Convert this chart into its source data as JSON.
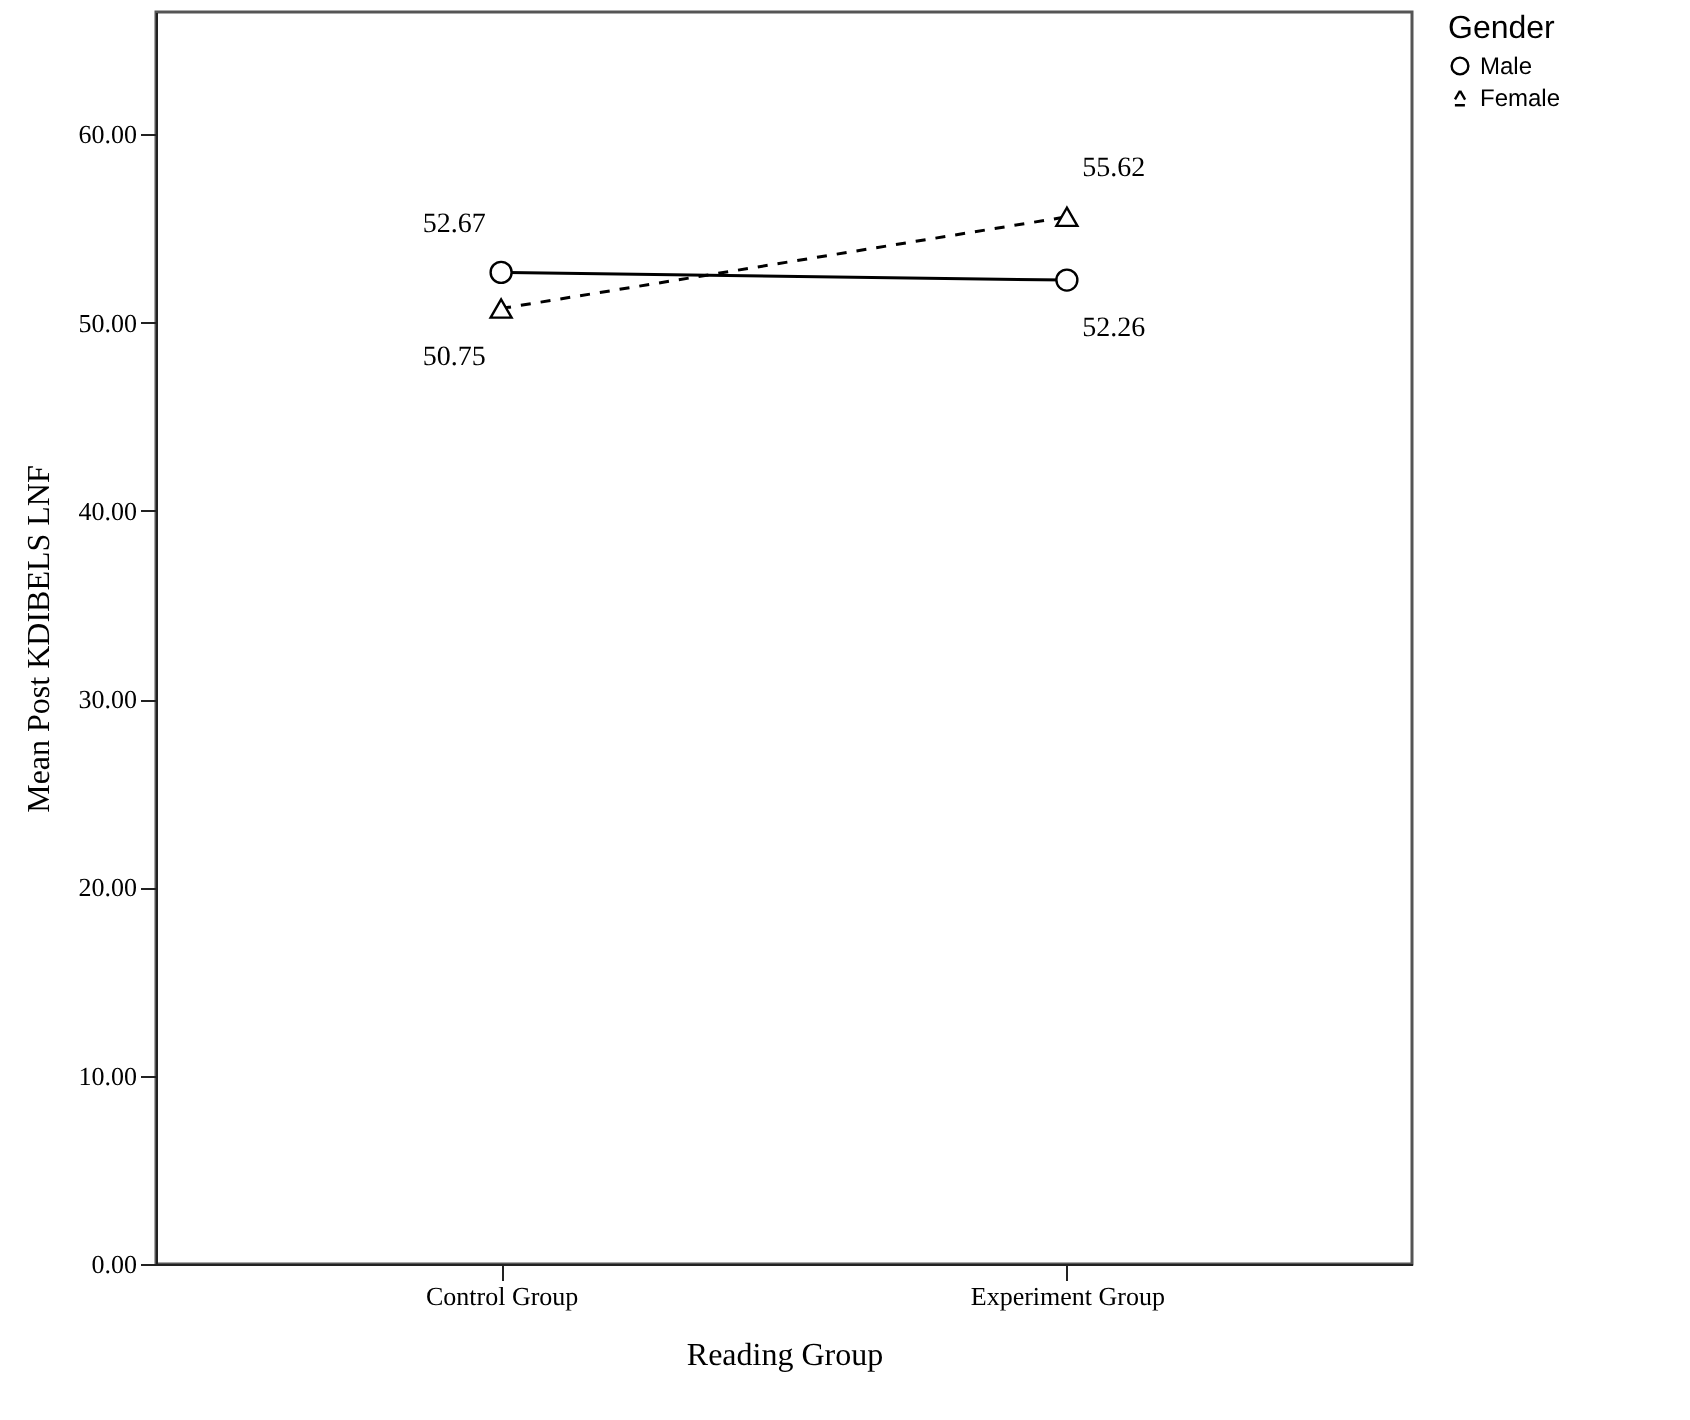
{
  "chart_data": {
    "type": "line",
    "xlabel": "Reading Group",
    "ylabel": "Mean Post KDIBELS LNF",
    "legend_title": "Gender",
    "categories": [
      "Control Group",
      "Experiment Group"
    ],
    "series": [
      {
        "name": "Male",
        "color": "#000000",
        "values": [
          52.67,
          52.26
        ],
        "marker": "circle",
        "line_style": "solid"
      },
      {
        "name": "Female",
        "color": "#000000",
        "values": [
          50.75,
          55.62
        ],
        "marker": "triangle",
        "line_style": "dashed"
      }
    ],
    "ylim": [
      0,
      66.5
    ],
    "yticks": [
      {
        "value": 0,
        "label": "0.00"
      },
      {
        "value": 10,
        "label": "10.00"
      },
      {
        "value": 20,
        "label": "20.00"
      },
      {
        "value": 30,
        "label": "30.00"
      },
      {
        "value": 40,
        "label": "40.00"
      },
      {
        "value": 50,
        "label": "50.00"
      },
      {
        "value": 60,
        "label": "60.00"
      }
    ],
    "data_labels": true,
    "grid": false,
    "legend": "top right"
  }
}
